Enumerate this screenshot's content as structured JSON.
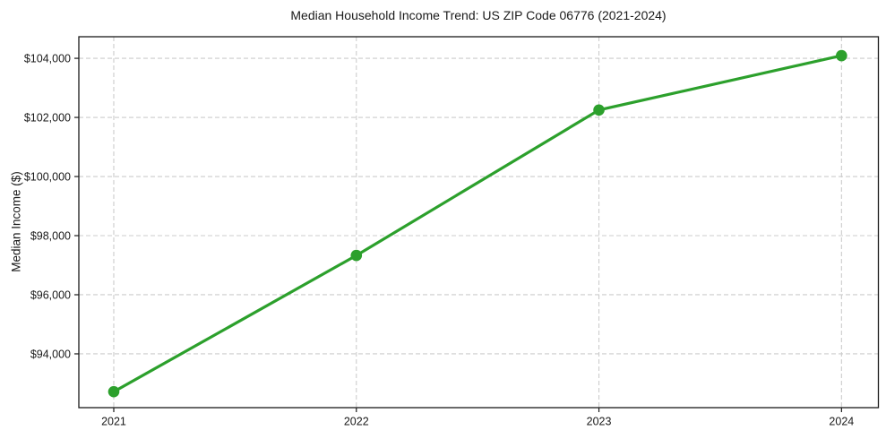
{
  "chart_data": {
    "type": "line",
    "title": "Median Household Income Trend: US ZIP Code 06776 (2021-2024)",
    "xlabel": "",
    "ylabel": "Median Income ($)",
    "categories": [
      "2021",
      "2022",
      "2023",
      "2024"
    ],
    "x": [
      2021,
      2022,
      2023,
      2024
    ],
    "series": [
      {
        "name": "Median Household Income",
        "values": [
          92720,
          97330,
          102250,
          104090
        ]
      }
    ],
    "x_tick_labels": [
      "2021",
      "2022",
      "2023",
      "2024"
    ],
    "y_ticks": [
      94000,
      96000,
      98000,
      100000,
      102000,
      104000
    ],
    "y_tick_labels": [
      "$94,000",
      "$96,000",
      "$98,000",
      "$100,000",
      "$102,000",
      "$104,000"
    ],
    "xlim": [
      2020.856,
      2024.152
    ],
    "ylim": [
      92180,
      104730
    ],
    "grid": true,
    "grid_style": "dashed",
    "legend": "none",
    "colors": {
      "line": "#2ca02c",
      "marker": "#2ca02c",
      "grid": "#cccccc",
      "spine": "#1a1a1a",
      "text": "#1a1a1a",
      "background": "#ffffff"
    }
  }
}
